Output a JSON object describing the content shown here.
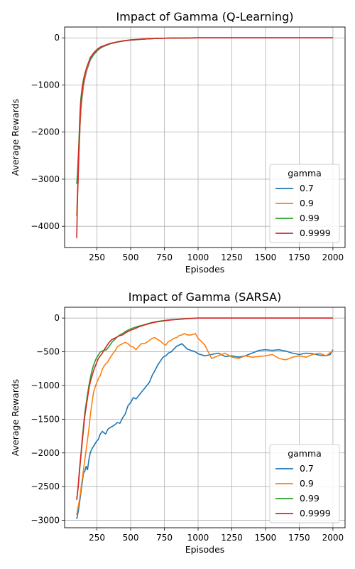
{
  "chart_data": [
    {
      "type": "line",
      "title": "Impact of Gamma (Q-Learning)",
      "xlabel": "Episodes",
      "ylabel": "Average Rewards",
      "xlim": [
        10,
        2090
      ],
      "ylim": [
        -4450,
        230
      ],
      "xticks": [
        250,
        500,
        750,
        1000,
        1250,
        1500,
        1750,
        2000
      ],
      "yticks": [
        -4000,
        -3000,
        -2000,
        -1000,
        0
      ],
      "grid": true,
      "legend": {
        "title": "gamma",
        "placement": "lower-right"
      },
      "series": [
        {
          "name": "0.7",
          "color": "#1f77b4",
          "x": [
            100,
            105,
            110,
            115,
            120,
            125,
            130,
            140,
            150,
            160,
            175,
            190,
            200,
            225,
            250,
            275,
            300,
            350,
            400,
            450,
            500,
            600,
            700,
            800,
            900,
            1000,
            1100,
            1200,
            1400,
            1600,
            1800,
            2000
          ],
          "y": [
            -3780,
            -3400,
            -3000,
            -2600,
            -2200,
            -1850,
            -1550,
            -1250,
            -1020,
            -860,
            -680,
            -560,
            -470,
            -360,
            -280,
            -220,
            -180,
            -125,
            -90,
            -65,
            -48,
            -25,
            -12,
            -5,
            -2,
            0,
            0,
            0,
            0,
            0,
            0,
            0
          ]
        },
        {
          "name": "0.9",
          "color": "#ff7f0e",
          "x": [
            100,
            105,
            110,
            115,
            120,
            125,
            130,
            140,
            150,
            160,
            175,
            190,
            200,
            225,
            250,
            275,
            300,
            350,
            400,
            450,
            500,
            600,
            700,
            800,
            900,
            1000,
            1100,
            1200,
            1400,
            1600,
            1800,
            2000
          ],
          "y": [
            -3750,
            -3350,
            -2950,
            -2550,
            -2150,
            -1800,
            -1500,
            -1200,
            -980,
            -820,
            -650,
            -530,
            -450,
            -350,
            -270,
            -215,
            -175,
            -120,
            -88,
            -63,
            -46,
            -24,
            -11,
            -5,
            -2,
            0,
            0,
            0,
            0,
            0,
            0,
            0
          ]
        },
        {
          "name": "0.99",
          "color": "#2ca02c",
          "x": [
            100,
            105,
            110,
            115,
            120,
            125,
            130,
            140,
            150,
            160,
            175,
            190,
            200,
            225,
            250,
            275,
            300,
            350,
            400,
            450,
            500,
            600,
            700,
            800,
            900,
            1000,
            1100,
            1200,
            1400,
            1600,
            1800,
            2000
          ],
          "y": [
            -3100,
            -2900,
            -2600,
            -2300,
            -1900,
            -1550,
            -1300,
            -1050,
            -880,
            -760,
            -620,
            -520,
            -450,
            -350,
            -270,
            -215,
            -175,
            -120,
            -88,
            -63,
            -46,
            -24,
            -11,
            -5,
            -2,
            0,
            0,
            0,
            0,
            0,
            0,
            0
          ]
        },
        {
          "name": "0.9999",
          "color": "#d62728",
          "x": [
            100,
            105,
            110,
            115,
            120,
            125,
            130,
            140,
            150,
            160,
            175,
            190,
            200,
            225,
            250,
            275,
            300,
            350,
            400,
            450,
            500,
            600,
            700,
            800,
            900,
            1000,
            1100,
            1200,
            1400,
            1600,
            1800,
            2000
          ],
          "y": [
            -4250,
            -3500,
            -3000,
            -2400,
            -2000,
            -1700,
            -1400,
            -1120,
            -900,
            -780,
            -620,
            -500,
            -420,
            -320,
            -245,
            -195,
            -165,
            -115,
            -85,
            -60,
            -44,
            -23,
            -11,
            -5,
            -2,
            0,
            0,
            0,
            0,
            0,
            0,
            0
          ]
        }
      ]
    },
    {
      "type": "line",
      "title": "Impact of Gamma (SARSA)",
      "xlabel": "Episodes",
      "ylabel": "Average Rewards",
      "xlim": [
        10,
        2090
      ],
      "ylim": [
        -3110,
        160
      ],
      "xticks": [
        250,
        500,
        750,
        1000,
        1250,
        1500,
        1750,
        2000
      ],
      "yticks": [
        -3000,
        -2500,
        -2000,
        -1500,
        -1000,
        -500,
        0
      ],
      "grid": true,
      "legend": {
        "title": "gamma",
        "placement": "lower-right"
      },
      "series": [
        {
          "name": "0.7",
          "color": "#1f77b4",
          "x": [
            100,
            110,
            120,
            130,
            140,
            150,
            160,
            170,
            180,
            190,
            200,
            210,
            225,
            240,
            250,
            260,
            275,
            290,
            300,
            315,
            330,
            350,
            370,
            390,
            400,
            420,
            440,
            460,
            480,
            500,
            520,
            540,
            560,
            580,
            600,
            620,
            640,
            660,
            680,
            700,
            720,
            740,
            760,
            780,
            800,
            820,
            840,
            860,
            880,
            900,
            920,
            950,
            980,
            1000,
            1050,
            1100,
            1150,
            1200,
            1250,
            1300,
            1350,
            1400,
            1450,
            1500,
            1550,
            1600,
            1650,
            1700,
            1750,
            1800,
            1850,
            1900,
            1950,
            1980,
            2000
          ],
          "y": [
            -2980,
            -2880,
            -2750,
            -2600,
            -2450,
            -2300,
            -2270,
            -2200,
            -2250,
            -2100,
            -2000,
            -1950,
            -1900,
            -1850,
            -1820,
            -1800,
            -1720,
            -1680,
            -1700,
            -1720,
            -1650,
            -1620,
            -1600,
            -1570,
            -1550,
            -1560,
            -1480,
            -1420,
            -1300,
            -1250,
            -1180,
            -1200,
            -1150,
            -1100,
            -1050,
            -1000,
            -950,
            -850,
            -780,
            -700,
            -640,
            -580,
            -560,
            -520,
            -500,
            -460,
            -420,
            -400,
            -380,
            -420,
            -460,
            -480,
            -500,
            -530,
            -560,
            -540,
            -520,
            -570,
            -560,
            -580,
            -560,
            -520,
            -480,
            -470,
            -480,
            -470,
            -490,
            -520,
            -540,
            -520,
            -530,
            -550,
            -560,
            -540,
            -470
          ]
        },
        {
          "name": "0.9",
          "color": "#ff7f0e",
          "x": [
            100,
            110,
            120,
            130,
            140,
            150,
            160,
            170,
            180,
            190,
            200,
            210,
            225,
            240,
            250,
            260,
            275,
            290,
            300,
            315,
            330,
            350,
            370,
            390,
            400,
            420,
            440,
            460,
            480,
            500,
            520,
            540,
            560,
            580,
            600,
            620,
            640,
            660,
            680,
            700,
            720,
            740,
            760,
            780,
            800,
            820,
            840,
            860,
            880,
            900,
            920,
            950,
            980,
            1000,
            1050,
            1100,
            1150,
            1200,
            1250,
            1300,
            1350,
            1400,
            1450,
            1500,
            1550,
            1600,
            1650,
            1700,
            1750,
            1800,
            1850,
            1900,
            1950,
            1980,
            2000
          ],
          "y": [
            -2920,
            -2800,
            -2700,
            -2550,
            -2400,
            -2250,
            -2100,
            -1950,
            -1800,
            -1650,
            -1450,
            -1300,
            -1100,
            -1000,
            -950,
            -900,
            -850,
            -760,
            -720,
            -680,
            -650,
            -580,
            -520,
            -470,
            -430,
            -400,
            -380,
            -360,
            -380,
            -420,
            -430,
            -470,
            -420,
            -380,
            -380,
            -360,
            -330,
            -300,
            -290,
            -320,
            -340,
            -380,
            -400,
            -350,
            -330,
            -300,
            -290,
            -260,
            -250,
            -230,
            -250,
            -250,
            -230,
            -300,
            -400,
            -600,
            -560,
            -520,
            -580,
            -600,
            -560,
            -580,
            -570,
            -560,
            -540,
            -600,
            -620,
            -580,
            -560,
            -580,
            -540,
            -520,
            -560,
            -510,
            -490
          ]
        },
        {
          "name": "0.99",
          "color": "#2ca02c",
          "x": [
            100,
            110,
            120,
            130,
            140,
            150,
            160,
            175,
            190,
            200,
            210,
            225,
            240,
            250,
            260,
            275,
            290,
            300,
            320,
            340,
            360,
            380,
            400,
            420,
            440,
            460,
            480,
            500,
            530,
            560,
            600,
            650,
            700,
            750,
            800,
            850,
            900,
            950,
            1000,
            1100,
            1200,
            1400,
            1600,
            1800,
            2000
          ],
          "y": [
            -2700,
            -2500,
            -2300,
            -2050,
            -1800,
            -1600,
            -1400,
            -1200,
            -1000,
            -900,
            -800,
            -700,
            -620,
            -580,
            -550,
            -500,
            -490,
            -480,
            -470,
            -420,
            -360,
            -320,
            -280,
            -250,
            -230,
            -200,
            -180,
            -160,
            -140,
            -120,
            -100,
            -70,
            -50,
            -35,
            -25,
            -18,
            -10,
            -5,
            0,
            0,
            0,
            0,
            0,
            0,
            0
          ]
        },
        {
          "name": "0.9999",
          "color": "#d62728",
          "x": [
            100,
            110,
            120,
            130,
            140,
            150,
            160,
            175,
            190,
            200,
            210,
            225,
            240,
            250,
            260,
            275,
            290,
            300,
            320,
            340,
            360,
            380,
            400,
            420,
            440,
            460,
            480,
            500,
            530,
            560,
            600,
            650,
            700,
            750,
            800,
            850,
            900,
            950,
            1000,
            1100,
            1200,
            1400,
            1600,
            1800,
            2000
          ],
          "y": [
            -2690,
            -2520,
            -2250,
            -2050,
            -1850,
            -1650,
            -1450,
            -1250,
            -1050,
            -950,
            -880,
            -780,
            -700,
            -650,
            -600,
            -560,
            -520,
            -480,
            -420,
            -360,
            -320,
            -300,
            -280,
            -260,
            -250,
            -220,
            -200,
            -180,
            -160,
            -130,
            -105,
            -75,
            -55,
            -40,
            -28,
            -20,
            -12,
            -6,
            0,
            0,
            0,
            0,
            0,
            0,
            0
          ]
        }
      ]
    }
  ]
}
